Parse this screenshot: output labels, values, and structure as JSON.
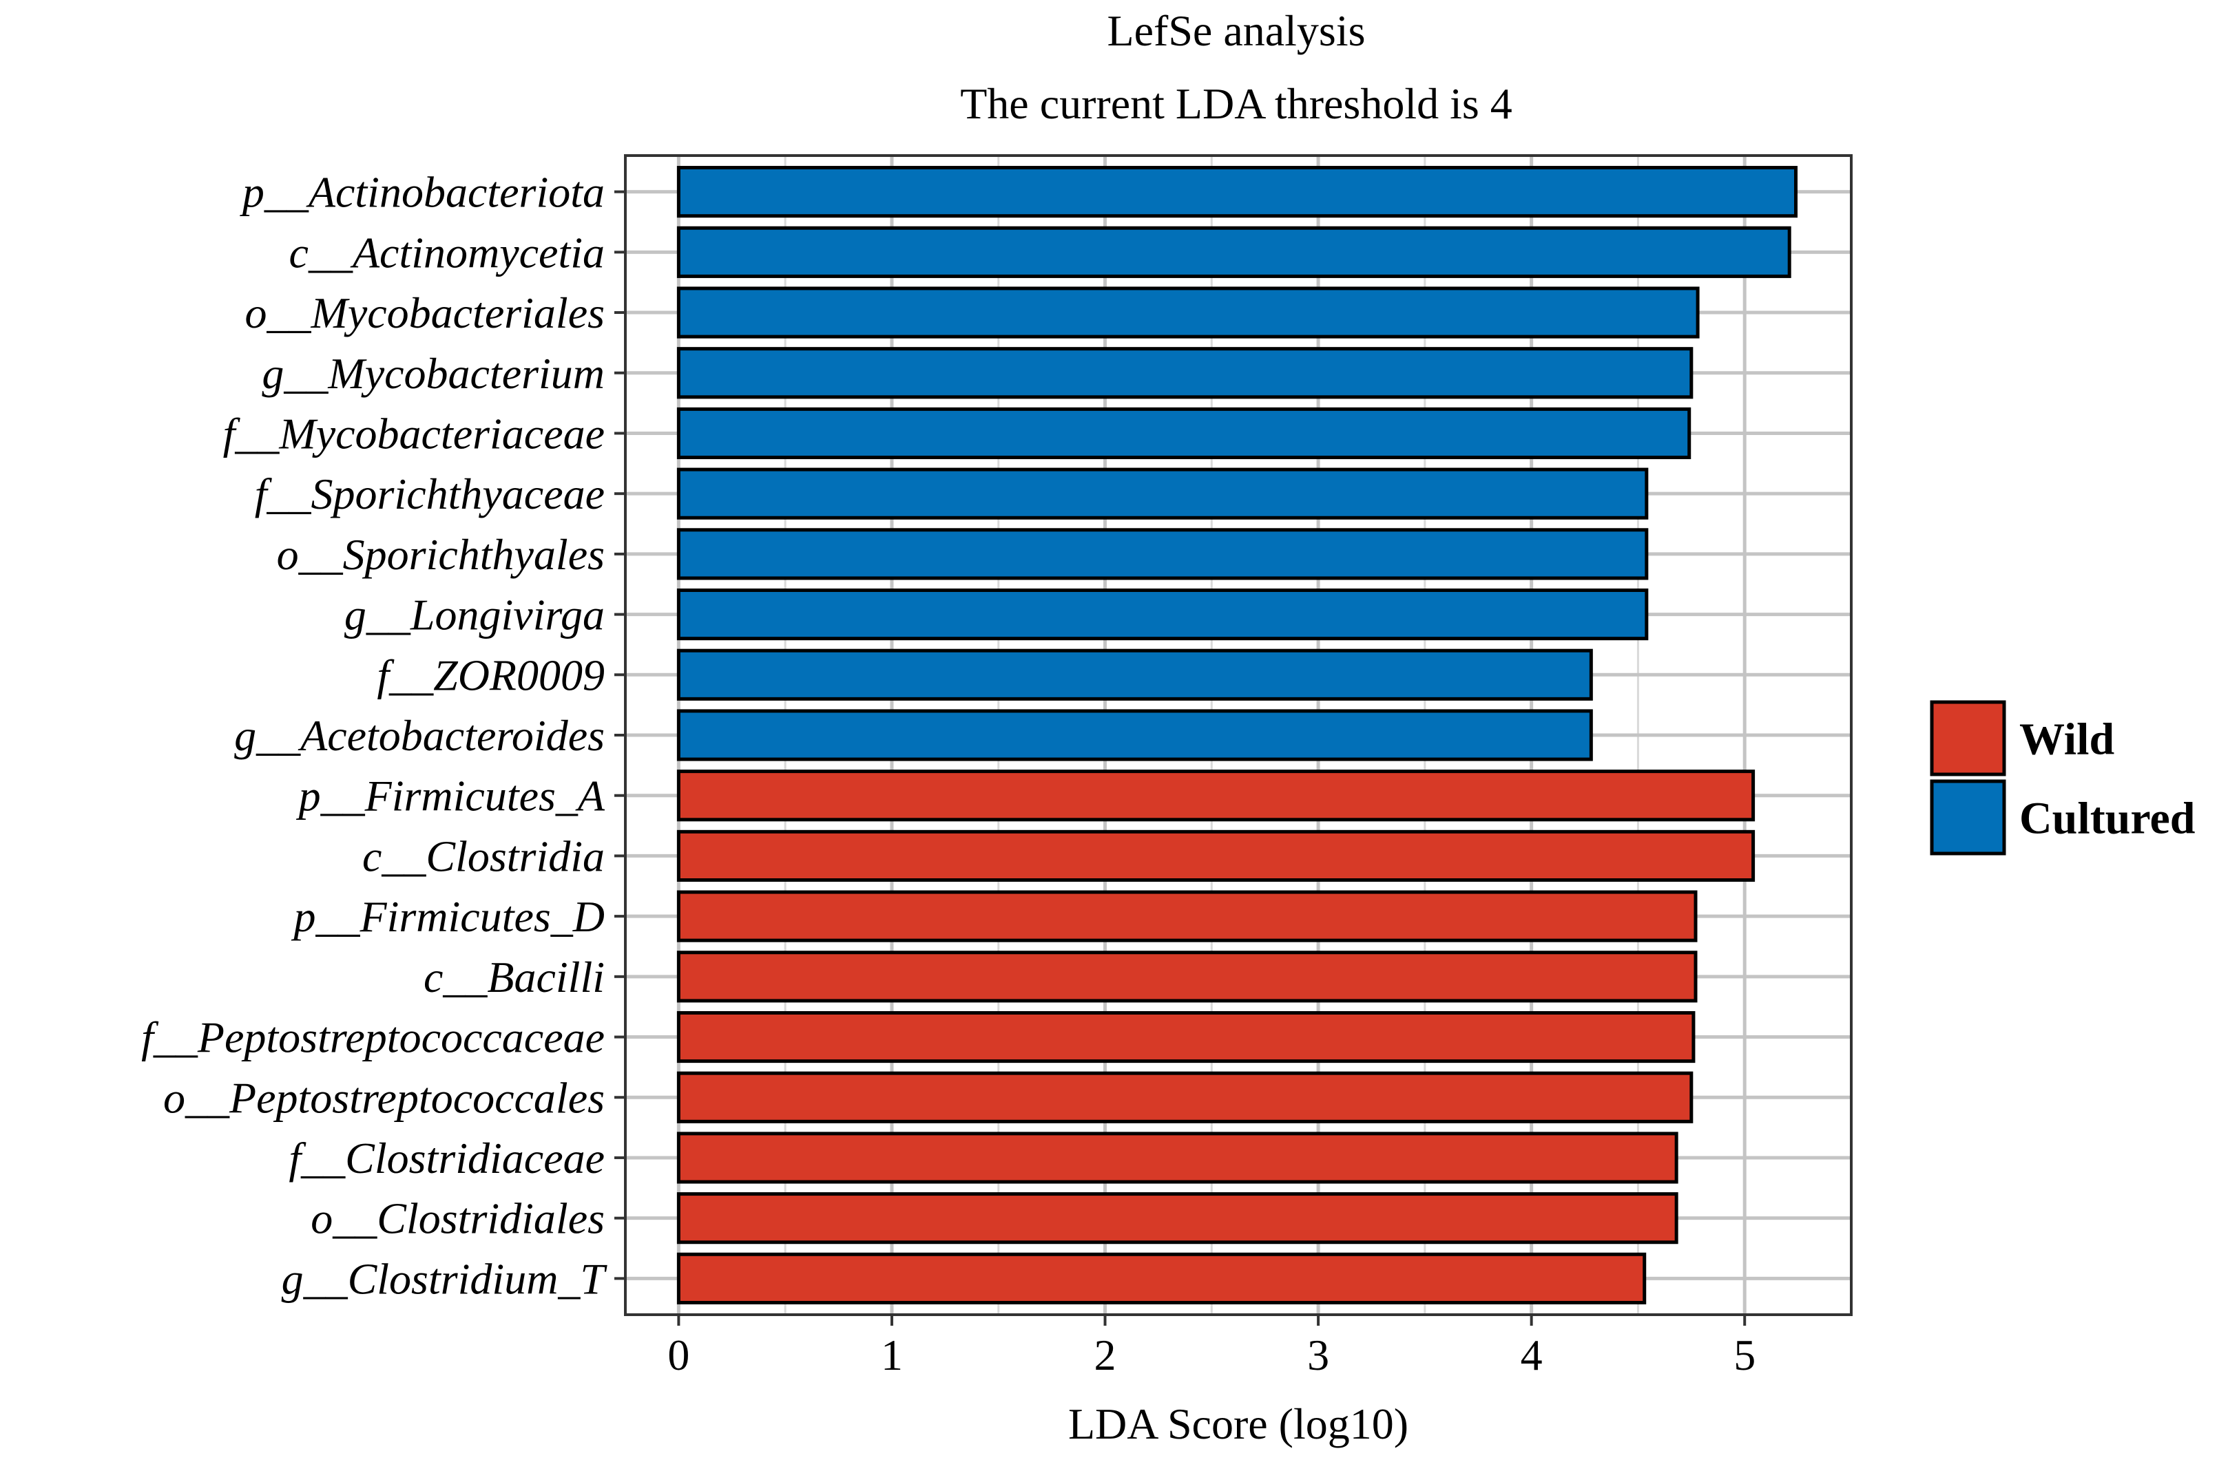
{
  "chart_data": {
    "type": "bar",
    "orientation": "horizontal",
    "title": "LefSe analysis",
    "subtitle": "The current LDA threshold is 4",
    "xlabel": "LDA Score (log10)",
    "ylabel": "",
    "xlim": [
      -0.25,
      5.5
    ],
    "xticks": [
      0,
      1,
      2,
      3,
      4,
      5
    ],
    "grid": true,
    "legend_position": "right",
    "categories": [
      "p__Actinobacteriota",
      "c__Actinomycetia",
      "o__Mycobacteriales",
      "g__Mycobacterium",
      "f__Mycobacteriaceae",
      "f__Sporichthyaceae",
      "o__Sporichthyales",
      "g__Longivirga",
      "f__ZOR0009",
      "g__Acetobacteroides",
      "p__Firmicutes_A",
      "c__Clostridia",
      "p__Firmicutes_D",
      "c__Bacilli",
      "f__Peptostreptococcaceae",
      "o__Peptostreptococcales",
      "f__Clostridiaceae",
      "o__Clostridiales",
      "g__Clostridium_T"
    ],
    "values": [
      5.24,
      5.21,
      4.78,
      4.75,
      4.74,
      4.54,
      4.54,
      4.54,
      4.28,
      4.28,
      5.04,
      5.04,
      4.77,
      4.77,
      4.76,
      4.75,
      4.68,
      4.68,
      4.53
    ],
    "groups": [
      "Cultured",
      "Cultured",
      "Cultured",
      "Cultured",
      "Cultured",
      "Cultured",
      "Cultured",
      "Cultured",
      "Cultured",
      "Cultured",
      "Wild",
      "Wild",
      "Wild",
      "Wild",
      "Wild",
      "Wild",
      "Wild",
      "Wild",
      "Wild"
    ],
    "legend": [
      {
        "name": "Wild",
        "color": "#D73A27"
      },
      {
        "name": "Cultured",
        "color": "#0270B8"
      }
    ]
  }
}
